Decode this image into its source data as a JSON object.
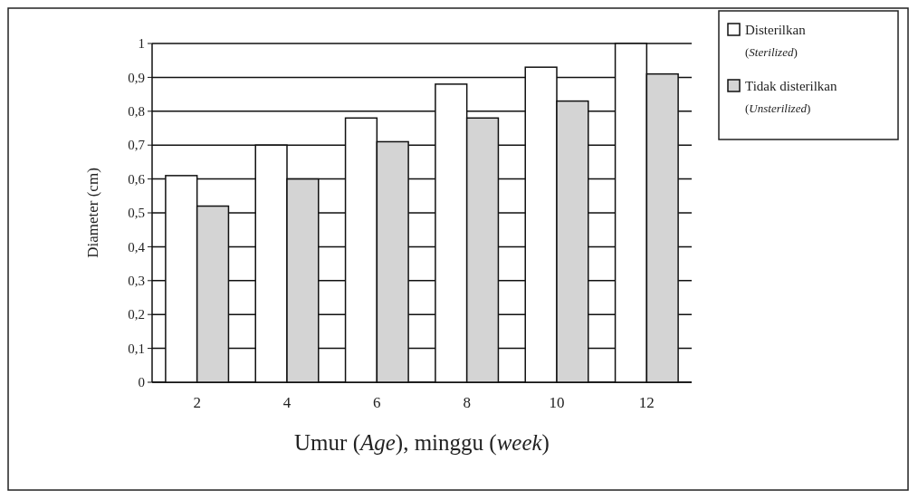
{
  "chart_data": {
    "type": "bar",
    "xlabel": "Umur (Age), minggu (week)",
    "ylabel": "Diameter (cm)",
    "categories": [
      "2",
      "4",
      "6",
      "8",
      "10",
      "12"
    ],
    "series": [
      {
        "name": "Disterilkan (Sterilized)",
        "color": "#ffffff",
        "values": [
          0.61,
          0.7,
          0.78,
          0.88,
          0.93,
          1.0
        ]
      },
      {
        "name": "Tidak disterilkan (Unsterilized)",
        "color": "#d4d4d4",
        "values": [
          0.52,
          0.6,
          0.71,
          0.78,
          0.83,
          0.91
        ]
      }
    ],
    "ylim": [
      0,
      1
    ],
    "yticks": [
      0,
      {
        "value": 0.1,
        "label": "0,1"
      },
      {
        "value": 0.2,
        "label": "0,2"
      },
      {
        "value": 0.3,
        "label": "0,3"
      },
      {
        "value": 0.4,
        "label": "0,4"
      },
      {
        "value": 0.5,
        "label": "0,5"
      },
      {
        "value": 0.6,
        "label": "0,6"
      },
      {
        "value": 0.7,
        "label": "0,7"
      },
      {
        "value": 0.8,
        "label": "0,8"
      },
      {
        "value": 0.9,
        "label": "0,9"
      },
      1
    ],
    "grid": "y",
    "legend": "top right"
  }
}
